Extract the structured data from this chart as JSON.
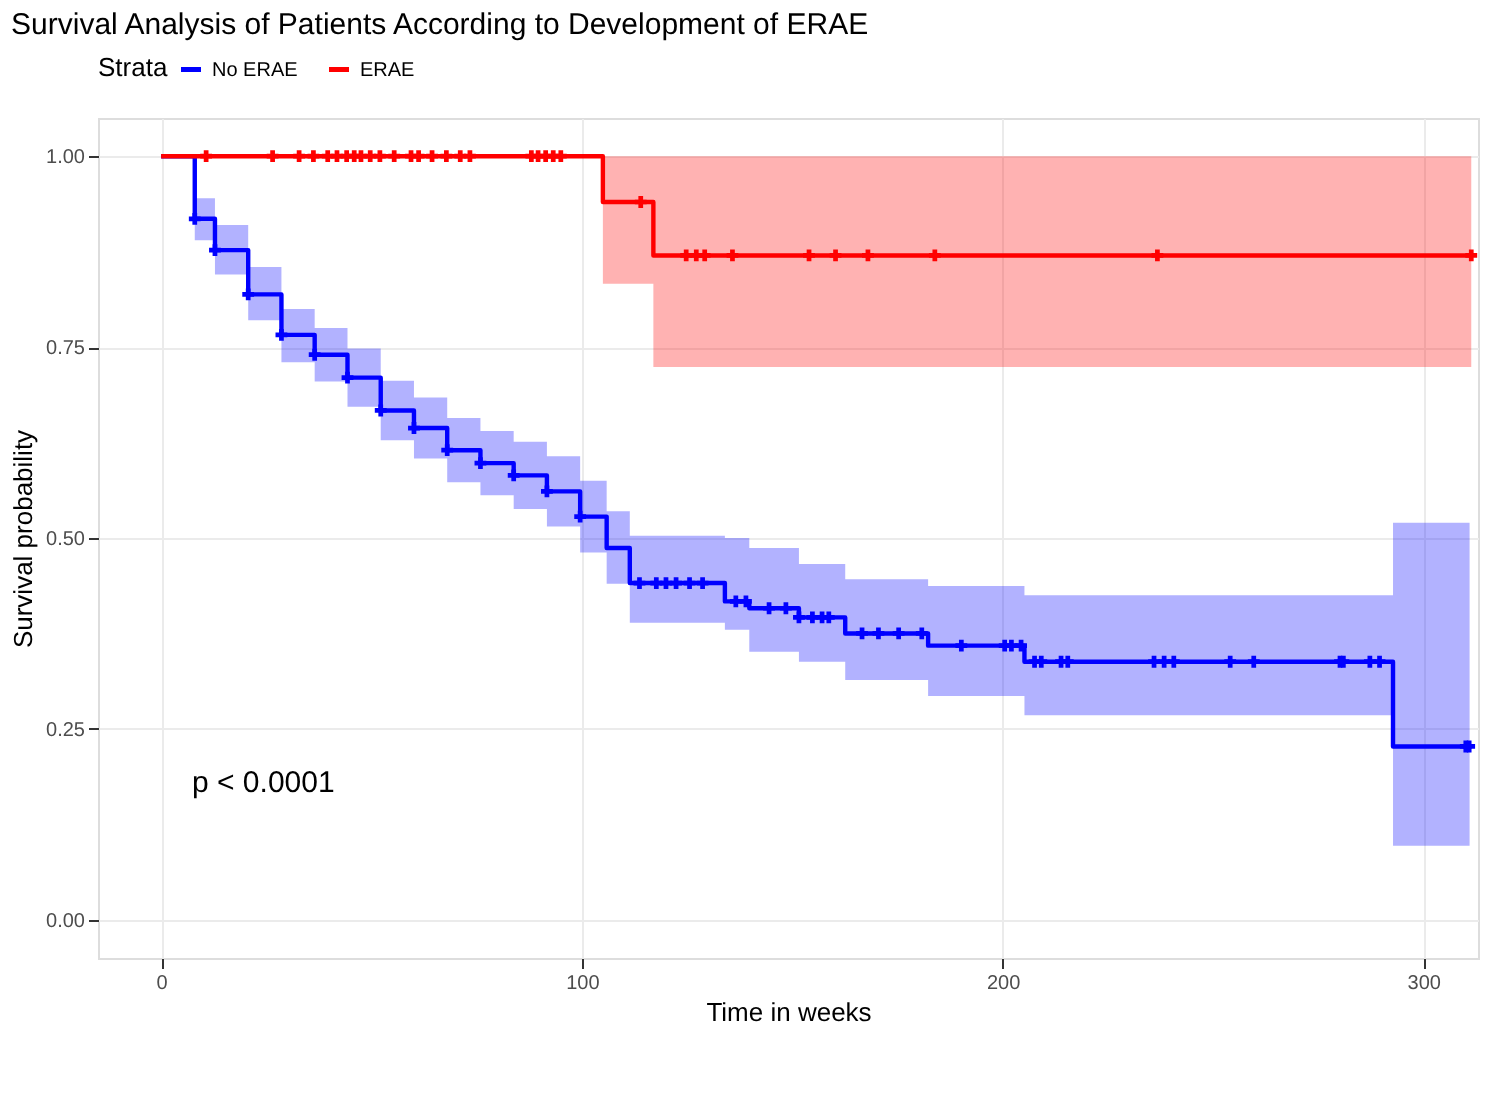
{
  "chart_data": {
    "type": "step",
    "title": "Survival Analysis of Patients According to Development of ERAE",
    "xlabel": "Time in weeks",
    "ylabel": "Survival probability",
    "legend_title": "Strata",
    "legend": "top",
    "grid": true,
    "line_style": "solid",
    "xlim": [
      -15,
      313
    ],
    "ylim": [
      -0.05,
      1.05
    ],
    "xticks": [
      0,
      100,
      200,
      300
    ],
    "yticks": [
      {
        "value": 0,
        "label": "0.00"
      },
      {
        "value": 0.25,
        "label": "0.25"
      },
      {
        "value": 0.5,
        "label": "0.50"
      },
      {
        "value": 0.75,
        "label": "0.75"
      },
      {
        "value": 1,
        "label": "1.00"
      }
    ],
    "annotations": [
      "p < 0.0001"
    ],
    "series": [
      {
        "name": "No ERAE",
        "color": "#0000ff",
        "x": [
          0,
          8,
          12.8,
          20.7,
          28.6,
          36.5,
          44.3,
          52.2,
          60.1,
          68,
          75.9,
          83.8,
          91.7,
          99.6,
          105.9,
          111.4,
          134,
          139.8,
          151.6,
          162.6,
          182.3,
          205.2,
          292.8,
          311
        ],
        "values": [
          1,
          0.918,
          0.877,
          0.819,
          0.766,
          0.74,
          0.71,
          0.667,
          0.644,
          0.615,
          0.598,
          0.582,
          0.561,
          0.528,
          0.487,
          0.441,
          0.417,
          0.408,
          0.396,
          0.375,
          0.359,
          0.338,
          0.227,
          0.227
        ],
        "lower": [
          1,
          0.89,
          0.845,
          0.785,
          0.73,
          0.705,
          0.672,
          0.628,
          0.604,
          0.573,
          0.556,
          0.538,
          0.515,
          0.481,
          0.44,
          0.389,
          0.38,
          0.351,
          0.338,
          0.314,
          0.293,
          0.268,
          0.097,
          0.097
        ],
        "upper": [
          1,
          0.945,
          0.91,
          0.855,
          0.8,
          0.775,
          0.748,
          0.706,
          0.684,
          0.657,
          0.64,
          0.626,
          0.607,
          0.575,
          0.535,
          0.503,
          0.5,
          0.487,
          0.466,
          0.446,
          0.437,
          0.425,
          0.52,
          0.52
        ]
      },
      {
        "name": "ERAE",
        "color": "#ff0000",
        "x": [
          0,
          105,
          117,
          311.4
        ],
        "values": [
          1,
          0.94,
          0.87,
          0.87
        ],
        "lower": [
          1,
          0.833,
          0.724,
          0.724
        ],
        "upper": [
          1,
          1,
          1,
          1
        ]
      },
      {
        "type": "scatter",
        "color": "#0000ff",
        "marker": "cross",
        "x": [
          8,
          12.8,
          20.7,
          28.6,
          36.5,
          44.3,
          52.2,
          60.1,
          68,
          75.9,
          83.8,
          91.7,
          99.6,
          113.7,
          117.7,
          120,
          122.4,
          125.6,
          128.7,
          136.6,
          139,
          144.5,
          148.5,
          151.6,
          154.8,
          157.1,
          158.7,
          166.6,
          170.5,
          175.3,
          180.8,
          190.2,
          200.5,
          202.1,
          204.4,
          207.6,
          209.2,
          213.9,
          215.5,
          236,
          238.4,
          240.7,
          254.1,
          259.7,
          280.2,
          281,
          287.3,
          289.6,
          310.1,
          310.9
        ],
        "values": [
          0.918,
          0.877,
          0.819,
          0.766,
          0.74,
          0.71,
          0.667,
          0.644,
          0.615,
          0.598,
          0.582,
          0.561,
          0.528,
          0.441,
          0.441,
          0.441,
          0.441,
          0.441,
          0.441,
          0.417,
          0.417,
          0.408,
          0.408,
          0.396,
          0.396,
          0.396,
          0.396,
          0.375,
          0.375,
          0.375,
          0.375,
          0.359,
          0.359,
          0.359,
          0.359,
          0.338,
          0.338,
          0.338,
          0.338,
          0.338,
          0.338,
          0.338,
          0.338,
          0.338,
          0.338,
          0.338,
          0.338,
          0.338,
          0.227,
          0.227
        ]
      },
      {
        "type": "scatter",
        "color": "#ff0000",
        "marker": "cross",
        "x": [
          10.7,
          26.5,
          32.8,
          36.2,
          39.6,
          41.8,
          44.1,
          45.9,
          47.5,
          49.7,
          52,
          55.4,
          59.4,
          61.2,
          64.4,
          67.8,
          71.1,
          73.4,
          88,
          89.6,
          91.4,
          93.2,
          95,
          114,
          124.8,
          127.2,
          129.2,
          135.8,
          154,
          160.3,
          168,
          183.9,
          236.8,
          311.4
        ],
        "values": [
          1,
          1,
          1,
          1,
          1,
          1,
          1,
          1,
          1,
          1,
          1,
          1,
          1,
          1,
          1,
          1,
          1,
          1,
          1,
          1,
          1,
          1,
          1,
          0.94,
          0.87,
          0.87,
          0.87,
          0.87,
          0.87,
          0.87,
          0.87,
          0.87,
          0.87,
          0.87
        ]
      }
    ]
  }
}
